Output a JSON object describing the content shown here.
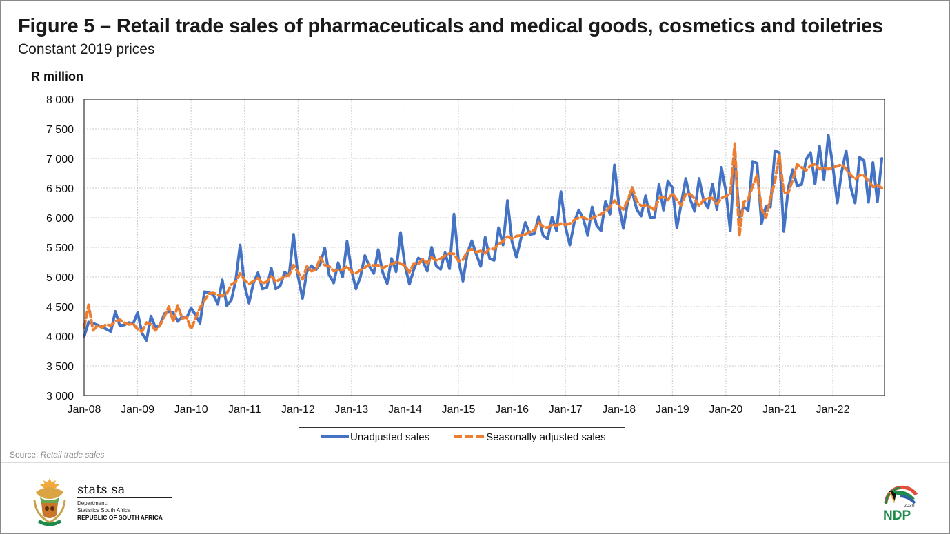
{
  "header": {
    "title": "Figure 5 – Retail trade sales of pharmaceuticals and medical goods, cosmetics and toiletries",
    "subtitle": "Constant 2019 prices",
    "y_unit_label": "R million"
  },
  "legend": {
    "unadjusted_label": "Unadjusted sales",
    "adjusted_label": "Seasonally adjusted sales"
  },
  "source": {
    "prefix": "Source: ",
    "name": "Retail trade sales"
  },
  "footer": {
    "org_name": "stats sa",
    "dept_line1": "Department:",
    "dept_line2": "Statistics South Africa",
    "country": "REPUBLIC OF SOUTH AFRICA",
    "ndp_year": "2030",
    "ndp_text": "NDP"
  },
  "colors": {
    "unadjusted": "#4472c4",
    "adjusted": "#ed7d31",
    "grid": "#c8c8c8",
    "axis": "#333333"
  },
  "chart_data": {
    "type": "line",
    "title": "Figure 5 – Retail trade sales of pharmaceuticals and medical goods, cosmetics and toiletries",
    "subtitle": "Constant 2019 prices",
    "xlabel": "",
    "ylabel": "R million",
    "ylim": [
      3000,
      8000
    ],
    "yticks": [
      3000,
      3500,
      4000,
      4500,
      5000,
      5500,
      6000,
      6500,
      7000,
      7500,
      8000
    ],
    "ytick_labels": [
      "3 000",
      "3 500",
      "4 000",
      "4 500",
      "5 000",
      "5 500",
      "6 000",
      "6 500",
      "7 000",
      "7 500",
      "8 000"
    ],
    "xtick_labels": [
      "Jan-08",
      "Jan-09",
      "Jan-10",
      "Jan-11",
      "Jan-12",
      "Jan-13",
      "Jan-14",
      "Jan-15",
      "Jan-16",
      "Jan-17",
      "Jan-18",
      "Jan-19",
      "Jan-20",
      "Jan-21",
      "Jan-22"
    ],
    "x_start": "2008-01",
    "frequency": "monthly",
    "grid": true,
    "legend_position": "bottom",
    "series": [
      {
        "name": "Unadjusted sales",
        "style": "solid",
        "values": [
          3990,
          4240,
          4220,
          4190,
          4160,
          4120,
          4080,
          4420,
          4180,
          4190,
          4230,
          4210,
          4400,
          4050,
          3930,
          4340,
          4150,
          4180,
          4380,
          4420,
          4400,
          4250,
          4330,
          4310,
          4480,
          4360,
          4220,
          4750,
          4740,
          4700,
          4540,
          4950,
          4520,
          4600,
          4930,
          5540,
          4860,
          4560,
          4900,
          5070,
          4800,
          4820,
          5150,
          4800,
          4850,
          5080,
          5030,
          5720,
          5010,
          4640,
          5090,
          5190,
          5120,
          5220,
          5490,
          5030,
          4900,
          5240,
          5000,
          5600,
          5110,
          4800,
          5000,
          5360,
          5180,
          5060,
          5460,
          5080,
          4890,
          5310,
          5090,
          5750,
          5190,
          4880,
          5130,
          5320,
          5270,
          5100,
          5500,
          5190,
          5130,
          5410,
          5140,
          6060,
          5280,
          4930,
          5400,
          5610,
          5380,
          5180,
          5670,
          5310,
          5280,
          5830,
          5540,
          6290,
          5600,
          5330,
          5640,
          5920,
          5720,
          5730,
          6020,
          5700,
          5640,
          6010,
          5780,
          6440,
          5850,
          5540,
          5930,
          6130,
          5990,
          5700,
          6180,
          5870,
          5780,
          6280,
          6060,
          6890,
          6220,
          5820,
          6280,
          6440,
          6140,
          6030,
          6370,
          6000,
          6000,
          6560,
          6130,
          6620,
          6510,
          5830,
          6240,
          6660,
          6310,
          6110,
          6660,
          6300,
          6160,
          6570,
          6140,
          6850,
          6450,
          5780,
          7060,
          6000,
          6190,
          6120,
          6950,
          6920,
          5900,
          6190,
          6180,
          7130,
          7100,
          5770,
          6500,
          6810,
          6540,
          6560,
          6980,
          7100,
          6570,
          7210,
          6650,
          7390,
          6870,
          6250,
          6780,
          7130,
          6520,
          6250,
          7020,
          6960,
          6260,
          6930,
          6270,
          7000
        ]
      },
      {
        "name": "Seasonally adjusted sales",
        "style": "dashed",
        "values": [
          4150,
          4530,
          4100,
          4180,
          4150,
          4200,
          4180,
          4250,
          4280,
          4230,
          4200,
          4210,
          4120,
          4080,
          4230,
          4200,
          4100,
          4180,
          4330,
          4500,
          4250,
          4520,
          4300,
          4320,
          4120,
          4300,
          4480,
          4600,
          4720,
          4730,
          4700,
          4680,
          4720,
          4870,
          4920,
          5060,
          4950,
          4880,
          4930,
          4980,
          4890,
          4920,
          5010,
          4920,
          4960,
          5010,
          5030,
          5200,
          5080,
          4960,
          5180,
          5100,
          5120,
          5330,
          5200,
          5180,
          5100,
          5120,
          5120,
          5180,
          5080,
          5060,
          5120,
          5160,
          5210,
          5190,
          5200,
          5150,
          5190,
          5220,
          5250,
          5230,
          5190,
          5080,
          5230,
          5220,
          5300,
          5230,
          5330,
          5280,
          5310,
          5360,
          5400,
          5390,
          5270,
          5290,
          5430,
          5470,
          5420,
          5440,
          5400,
          5480,
          5470,
          5560,
          5600,
          5680,
          5650,
          5690,
          5700,
          5720,
          5760,
          5790,
          5920,
          5850,
          5830,
          5880,
          5870,
          5900,
          5880,
          5900,
          5960,
          6000,
          6010,
          5960,
          5990,
          6030,
          6060,
          6110,
          6180,
          6290,
          6200,
          6140,
          6300,
          6510,
          6280,
          6200,
          6210,
          6180,
          6130,
          6330,
          6350,
          6300,
          6410,
          6300,
          6210,
          6400,
          6400,
          6320,
          6200,
          6300,
          6330,
          6330,
          6230,
          6330,
          6360,
          6400,
          7250,
          5680,
          6270,
          6310,
          6530,
          6720,
          6150,
          6000,
          6330,
          6610,
          7060,
          6420,
          6420,
          6640,
          6900,
          6850,
          6800,
          6880,
          6900,
          6820,
          6850,
          6820,
          6850,
          6870,
          6900,
          6820,
          6720,
          6650,
          6720,
          6710,
          6620,
          6520,
          6550,
          6500
        ]
      }
    ]
  }
}
